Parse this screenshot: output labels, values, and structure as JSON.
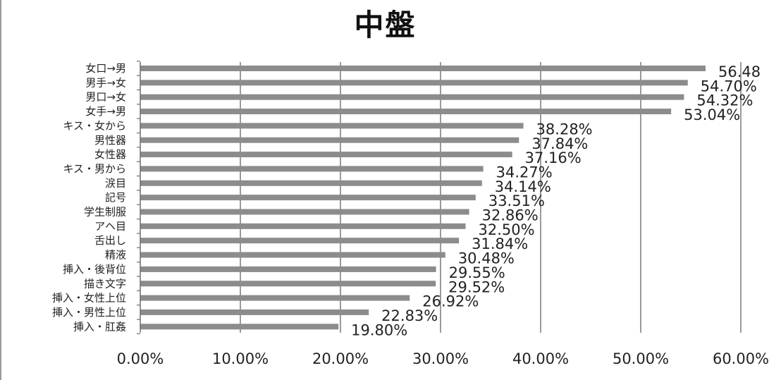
{
  "chart_data": {
    "type": "bar",
    "orientation": "horizontal",
    "title": "中盤",
    "categories": [
      "女口→男",
      "男手→女",
      "男口→女",
      "女手→男",
      "キス・女から",
      "男性器",
      "女性器",
      "キス・男から",
      "涙目",
      "記号",
      "学生制服",
      "アヘ目",
      "舌出し",
      "精液",
      "挿入・後背位",
      "描き文字",
      "挿入・女性上位",
      "挿入・男性上位",
      "挿入・肛姦"
    ],
    "values": [
      56.48,
      54.7,
      54.32,
      53.04,
      38.28,
      37.84,
      37.16,
      34.27,
      34.14,
      33.51,
      32.86,
      32.5,
      31.84,
      30.48,
      29.55,
      29.52,
      26.92,
      22.83,
      19.8
    ],
    "data_labels": [
      "56.48",
      "54.70%",
      "54.32%",
      "53.04%",
      "38.28%",
      "37.84%",
      "37.16%",
      "34.27%",
      "34.14%",
      "33.51%",
      "32.86%",
      "32.50%",
      "31.84%",
      "30.48%",
      "29.55%",
      "29.52%",
      "26.92%",
      "22.83%",
      "19.80%"
    ],
    "x_ticks": [
      "0.00%",
      "10.00%",
      "20.00%",
      "30.00%",
      "40.00%",
      "50.00%",
      "60.00%"
    ],
    "xlim": [
      0,
      60
    ],
    "xlabel": "",
    "ylabel": "",
    "grid": true,
    "bar_color": "#8c8c8c",
    "grid_color": "#9a9a9a"
  }
}
